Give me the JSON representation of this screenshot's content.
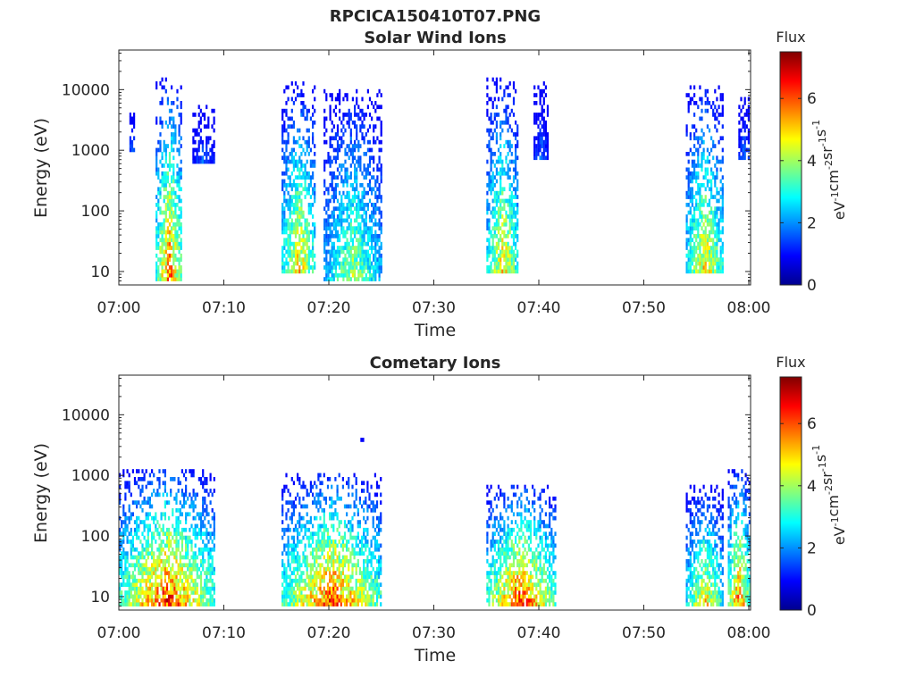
{
  "figure": {
    "title": "RPCICA150410T07.PNG"
  },
  "chart_data": [
    {
      "type": "heatmap",
      "title": "Solar Wind Ions",
      "xlabel": "Time",
      "ylabel": "Energy (eV)",
      "x_ticks": [
        "07:00",
        "07:10",
        "07:20",
        "07:30",
        "07:40",
        "07:50",
        "08:00"
      ],
      "xlim_minutes": [
        0,
        60
      ],
      "y_scale": "log",
      "y_ticks": [
        "10",
        "100",
        "1000",
        "10000"
      ],
      "ylim": [
        6,
        45000
      ],
      "colorbar": {
        "label": "Flux",
        "units_parts": [
          "eV",
          "-1",
          "cm",
          "-2",
          "sr",
          "-1",
          "s",
          "-1"
        ],
        "ticks": [
          "0",
          "2",
          "4",
          "6"
        ],
        "range": [
          0,
          7.5
        ]
      },
      "bursts": [
        {
          "t_start": 1.0,
          "t_end": 1.5,
          "e_min": 1000,
          "e_max": 6500,
          "peak_flux": 2.0
        },
        {
          "t_start": 3.5,
          "t_end": 6.0,
          "e_min": 7,
          "e_max": 15000,
          "peak_flux": 6.5
        },
        {
          "t_start": 7.0,
          "t_end": 9.0,
          "e_min": 600,
          "e_max": 6000,
          "peak_flux": 2.0
        },
        {
          "t_start": 15.5,
          "t_end": 18.7,
          "e_min": 10,
          "e_max": 13000,
          "peak_flux": 5.5
        },
        {
          "t_start": 19.5,
          "t_end": 25.0,
          "e_min": 7,
          "e_max": 10000,
          "peak_flux": 4.5
        },
        {
          "t_start": 35.0,
          "t_end": 38.0,
          "e_min": 10,
          "e_max": 15000,
          "peak_flux": 5.5
        },
        {
          "t_start": 39.5,
          "t_end": 40.8,
          "e_min": 700,
          "e_max": 13000,
          "peak_flux": 2.0
        },
        {
          "t_start": 54.0,
          "t_end": 57.5,
          "e_min": 10,
          "e_max": 11000,
          "peak_flux": 5.5
        },
        {
          "t_start": 59.0,
          "t_end": 60.0,
          "e_min": 700,
          "e_max": 9000,
          "peak_flux": 2.0
        }
      ]
    },
    {
      "type": "heatmap",
      "title": "Cometary Ions",
      "xlabel": "Time",
      "ylabel": "Energy (eV)",
      "x_ticks": [
        "07:00",
        "07:10",
        "07:20",
        "07:30",
        "07:40",
        "07:50",
        "08:00"
      ],
      "xlim_minutes": [
        0,
        60
      ],
      "y_scale": "log",
      "y_ticks": [
        "10",
        "100",
        "1000",
        "10000"
      ],
      "ylim": [
        6,
        45000
      ],
      "colorbar": {
        "label": "Flux",
        "units_parts": [
          "eV",
          "-1",
          "cm",
          "-2",
          "sr",
          "-1",
          "s",
          "-1"
        ],
        "ticks": [
          "0",
          "2",
          "4",
          "6"
        ],
        "range": [
          0,
          7.5
        ]
      },
      "bursts": [
        {
          "t_start": 0.0,
          "t_end": 9.0,
          "e_min": 7,
          "e_max": 1300,
          "peak_flux": 7.0
        },
        {
          "t_start": 15.5,
          "t_end": 25.0,
          "e_min": 7,
          "e_max": 1100,
          "peak_flux": 6.8
        },
        {
          "t_start": 23.0,
          "t_end": 23.2,
          "e_min": 3500,
          "e_max": 4500,
          "peak_flux": 1.5
        },
        {
          "t_start": 35.0,
          "t_end": 41.5,
          "e_min": 7,
          "e_max": 700,
          "peak_flux": 7.0
        },
        {
          "t_start": 54.0,
          "t_end": 57.5,
          "e_min": 7,
          "e_max": 700,
          "peak_flux": 5.5
        },
        {
          "t_start": 58.0,
          "t_end": 60.0,
          "e_min": 7,
          "e_max": 1300,
          "peak_flux": 6.5
        }
      ]
    }
  ]
}
